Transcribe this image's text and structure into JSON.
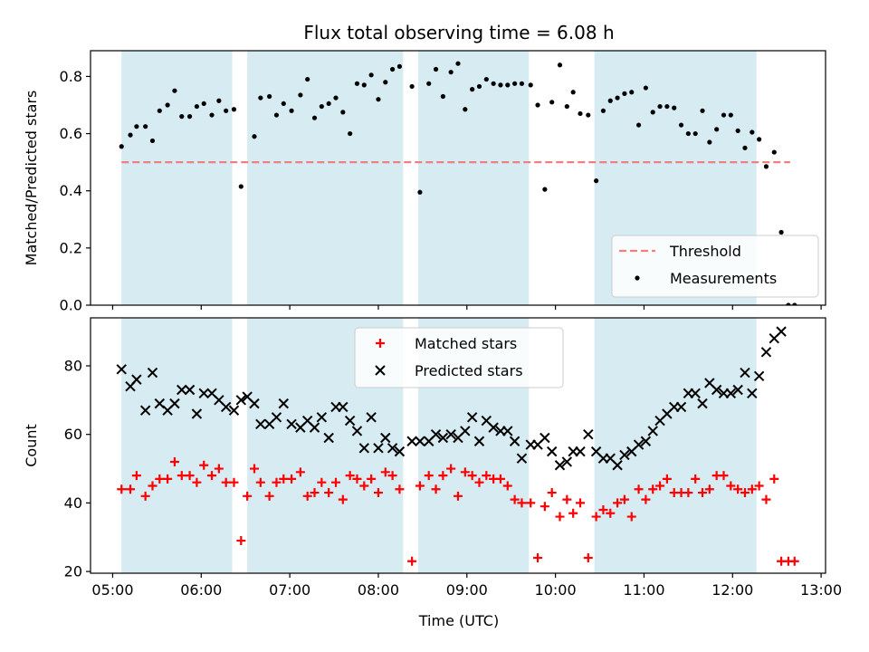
{
  "chart_data": {
    "type": "scatter",
    "title": "Flux total observing time = 6.08 h",
    "xlabel": "Time (UTC)",
    "x_unit": "hours UTC",
    "xlim": [
      4.75,
      13.05
    ],
    "x_ticks": [
      5,
      6,
      7,
      8,
      9,
      10,
      11,
      12,
      13
    ],
    "x_tick_labels": [
      "05:00",
      "06:00",
      "07:00",
      "08:00",
      "09:00",
      "10:00",
      "11:00",
      "12:00",
      "13:00"
    ],
    "observing_spans": [
      [
        5.1,
        6.35
      ],
      [
        6.52,
        8.28
      ],
      [
        8.45,
        9.7
      ],
      [
        10.44,
        12.27
      ]
    ],
    "colors": {
      "span": "#add8e6",
      "threshold": "#f08080",
      "matched": "#ff0000",
      "predicted": "#000000",
      "measurement": "#000000"
    },
    "panels": [
      {
        "id": "ratio",
        "ylabel": "Matched/Predicted stars",
        "ylim": [
          0,
          0.89
        ],
        "y_ticks": [
          0.0,
          0.2,
          0.4,
          0.6,
          0.8
        ],
        "y_tick_labels": [
          "0.0",
          "0.2",
          "0.4",
          "0.6",
          "0.8"
        ],
        "legend_position": "lower right",
        "threshold": {
          "name": "Threshold",
          "x_range": [
            5.1,
            12.65
          ],
          "value": 0.5
        },
        "series": [
          {
            "name": "Measurements",
            "marker": "dot",
            "x": [
              5.1,
              5.2,
              5.27,
              5.37,
              5.45,
              5.53,
              5.62,
              5.7,
              5.78,
              5.87,
              5.95,
              6.03,
              6.12,
              6.2,
              6.28,
              6.37,
              6.45,
              6.6,
              6.67,
              6.77,
              6.85,
              6.93,
              7.02,
              7.12,
              7.2,
              7.28,
              7.36,
              7.44,
              7.52,
              7.6,
              7.68,
              7.76,
              7.84,
              7.92,
              8.0,
              8.08,
              8.16,
              8.24,
              8.38,
              8.47,
              8.57,
              8.65,
              8.73,
              8.82,
              8.9,
              8.98,
              9.06,
              9.14,
              9.22,
              9.3,
              9.38,
              9.46,
              9.54,
              9.62,
              9.72,
              9.8,
              9.88,
              9.96,
              10.05,
              10.13,
              10.2,
              10.28,
              10.37,
              10.46,
              10.54,
              10.62,
              10.7,
              10.78,
              10.86,
              10.94,
              11.02,
              11.1,
              11.18,
              11.26,
              11.34,
              11.42,
              11.5,
              11.58,
              11.66,
              11.74,
              11.82,
              11.9,
              11.98,
              12.06,
              12.14,
              12.22,
              12.3,
              12.38,
              12.47,
              12.55,
              12.63,
              12.7
            ],
            "y": [
              0.555,
              0.595,
              0.625,
              0.625,
              0.575,
              0.68,
              0.7,
              0.75,
              0.66,
              0.66,
              0.695,
              0.705,
              0.665,
              0.715,
              0.68,
              0.685,
              0.415,
              0.59,
              0.725,
              0.73,
              0.665,
              0.705,
              0.68,
              0.735,
              0.79,
              0.655,
              0.695,
              0.705,
              0.725,
              0.675,
              0.6,
              0.775,
              0.77,
              0.805,
              0.72,
              0.78,
              0.825,
              0.835,
              0.765,
              0.395,
              0.775,
              0.825,
              0.73,
              0.815,
              0.845,
              0.685,
              0.755,
              0.765,
              0.79,
              0.775,
              0.77,
              0.77,
              0.775,
              0.775,
              0.77,
              0.7,
              0.405,
              0.71,
              0.84,
              0.695,
              0.745,
              0.67,
              0.665,
              0.435,
              0.68,
              0.715,
              0.725,
              0.74,
              0.745,
              0.63,
              0.76,
              0.675,
              0.695,
              0.695,
              0.69,
              0.63,
              0.6,
              0.6,
              0.68,
              0.57,
              0.615,
              0.665,
              0.665,
              0.61,
              0.55,
              0.605,
              0.58,
              0.485,
              0.535,
              0.255,
              0.0,
              0.0
            ]
          }
        ],
        "legend": [
          "Threshold",
          "Measurements"
        ]
      },
      {
        "id": "counts",
        "ylabel": "Count",
        "ylim": [
          19.5,
          94
        ],
        "y_ticks": [
          20,
          40,
          60,
          80
        ],
        "y_tick_labels": [
          "20",
          "40",
          "60",
          "80"
        ],
        "legend_position": "upper center",
        "series": [
          {
            "name": "Matched stars",
            "marker": "plus",
            "x": [
              5.1,
              5.2,
              5.27,
              5.37,
              5.45,
              5.53,
              5.62,
              5.7,
              5.78,
              5.87,
              5.95,
              6.03,
              6.12,
              6.2,
              6.28,
              6.37,
              6.45,
              6.52,
              6.6,
              6.67,
              6.77,
              6.85,
              6.93,
              7.02,
              7.12,
              7.2,
              7.28,
              7.36,
              7.44,
              7.52,
              7.6,
              7.68,
              7.76,
              7.84,
              7.92,
              8.0,
              8.08,
              8.16,
              8.24,
              8.38,
              8.47,
              8.57,
              8.65,
              8.73,
              8.82,
              8.9,
              8.98,
              9.06,
              9.14,
              9.22,
              9.3,
              9.38,
              9.46,
              9.54,
              9.62,
              9.72,
              9.8,
              9.88,
              9.96,
              10.05,
              10.13,
              10.2,
              10.28,
              10.37,
              10.46,
              10.54,
              10.62,
              10.7,
              10.78,
              10.86,
              10.94,
              11.02,
              11.1,
              11.18,
              11.26,
              11.34,
              11.42,
              11.5,
              11.58,
              11.66,
              11.74,
              11.82,
              11.9,
              11.98,
              12.06,
              12.14,
              12.22,
              12.3,
              12.38,
              12.47,
              12.55,
              12.63,
              12.7
            ],
            "y": [
              44,
              44,
              48,
              42,
              45,
              47,
              47,
              52,
              48,
              48,
              46,
              51,
              48,
              50,
              46,
              46,
              29,
              42,
              50,
              46,
              42,
              46,
              47,
              47,
              49,
              42,
              43,
              46,
              43,
              46,
              41,
              48,
              47,
              45,
              47,
              43,
              49,
              48,
              44,
              23,
              45,
              48,
              44,
              48,
              50,
              42,
              49,
              48,
              46,
              48,
              47,
              47,
              45,
              41,
              40,
              40,
              24,
              39,
              43,
              36,
              41,
              37,
              40,
              24,
              36,
              38,
              37,
              40,
              41,
              36,
              44,
              41,
              44,
              45,
              47,
              43,
              43,
              43,
              47,
              43,
              44,
              48,
              48,
              45,
              44,
              43,
              44,
              45,
              41,
              47,
              23,
              23,
              23
            ]
          },
          {
            "name": "Predicted stars",
            "marker": "x",
            "x": [
              5.1,
              5.2,
              5.27,
              5.37,
              5.45,
              5.53,
              5.62,
              5.7,
              5.78,
              5.87,
              5.95,
              6.03,
              6.12,
              6.2,
              6.28,
              6.37,
              6.45,
              6.52,
              6.6,
              6.67,
              6.77,
              6.85,
              6.93,
              7.02,
              7.12,
              7.2,
              7.28,
              7.36,
              7.44,
              7.52,
              7.6,
              7.68,
              7.76,
              7.84,
              7.92,
              8.0,
              8.08,
              8.16,
              8.24,
              8.38,
              8.47,
              8.57,
              8.65,
              8.73,
              8.82,
              8.9,
              8.98,
              9.06,
              9.14,
              9.22,
              9.3,
              9.38,
              9.46,
              9.54,
              9.62,
              9.72,
              9.8,
              9.88,
              9.96,
              10.05,
              10.13,
              10.2,
              10.28,
              10.37,
              10.46,
              10.54,
              10.62,
              10.7,
              10.78,
              10.86,
              10.94,
              11.02,
              11.1,
              11.18,
              11.26,
              11.34,
              11.42,
              11.5,
              11.58,
              11.66,
              11.74,
              11.82,
              11.9,
              11.98,
              12.06,
              12.14,
              12.22,
              12.3,
              12.38,
              12.47,
              12.55
            ],
            "y": [
              79,
              74,
              76,
              67,
              78,
              69,
              67,
              69,
              73,
              73,
              66,
              72,
              72,
              70,
              68,
              67,
              70,
              71,
              69,
              63,
              63,
              65,
              69,
              63,
              62,
              64,
              62,
              65,
              59,
              68,
              68,
              64,
              61,
              56,
              65,
              56,
              59,
              56,
              55,
              58,
              58,
              58,
              60,
              59,
              60,
              59,
              61,
              65,
              58,
              64,
              62,
              61,
              61,
              58,
              53,
              57,
              57,
              59,
              55,
              51,
              52,
              55,
              55,
              60,
              55,
              53,
              53,
              51,
              54,
              55,
              57,
              58,
              61,
              64,
              66,
              68,
              68,
              72,
              72,
              69,
              75,
              73,
              72,
              72,
              73,
              78,
              72,
              77,
              84,
              88,
              90
            ]
          }
        ],
        "legend": [
          "Matched stars",
          "Predicted stars"
        ]
      }
    ]
  }
}
